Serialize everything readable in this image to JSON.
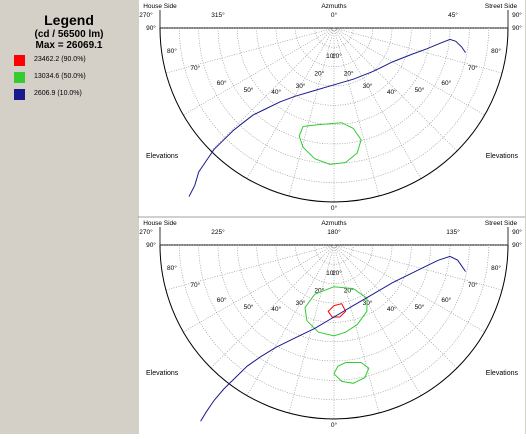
{
  "legend": {
    "title": "Legend",
    "subtitle": "(cd / 56500 lm)",
    "max": "Max = 26069.1",
    "items": [
      {
        "label": "23462.2  (90.0%)",
        "color": "#ff0000"
      },
      {
        "label": "13034.6  (50.0%)",
        "color": "#33cc33"
      },
      {
        "label": "2606.9  (10.0%)",
        "color": "#1a1a8c"
      }
    ]
  },
  "chart_data": [
    {
      "type": "polar-contour",
      "header_left": "House Side",
      "header_center": "Azmuths",
      "header_right": "Street Side",
      "azimuth_ticks": [
        "270°",
        "315°",
        "0°",
        "45°",
        "90°"
      ],
      "elevation_left_ticks": [
        "90°",
        "80°",
        "70°",
        "60°",
        "50°",
        "40°",
        "30°",
        "20°",
        "10°"
      ],
      "elevation_right_ticks": [
        "90°",
        "80°",
        "70°",
        "60°",
        "50°",
        "40°",
        "30°",
        "20°",
        "10°"
      ],
      "bottom_tick": "0°",
      "side_label_left": "Elevations",
      "side_label_right": "Elevations",
      "contours": [
        {
          "level": "13034.6 (50.0%)",
          "color": "#33cc33",
          "points": [
            [
              -16,
              38
            ],
            [
              -8,
              39
            ],
            [
              4,
              40
            ],
            [
              10,
              37
            ],
            [
              14,
              31
            ],
            [
              12,
              24
            ],
            [
              6,
              19
            ],
            [
              -2,
              18
            ],
            [
              -10,
              21
            ],
            [
              -16,
              27
            ],
            [
              -18,
              33
            ],
            [
              -16,
              38
            ]
          ]
        },
        {
          "level": "2606.9 (10.0%)",
          "color": "#1a1a8c",
          "points": [
            [
              -75,
              1
            ],
            [
              -72,
              7
            ],
            [
              -70,
              14
            ],
            [
              -66,
              20
            ],
            [
              -62,
              26
            ],
            [
              -57,
              31
            ],
            [
              -52,
              36
            ],
            [
              -47,
              40
            ],
            [
              -42,
              44
            ],
            [
              -36,
              47
            ],
            [
              -28,
              51
            ],
            [
              -20,
              54
            ],
            [
              -10,
              57
            ],
            [
              0,
              60
            ],
            [
              10,
              63
            ],
            [
              20,
              67
            ],
            [
              30,
              72
            ],
            [
              40,
              76
            ],
            [
              48,
              79
            ],
            [
              55,
              82
            ],
            [
              60,
              84
            ],
            [
              63,
              83
            ],
            [
              66,
              80
            ],
            [
              68,
              77
            ]
          ]
        }
      ]
    },
    {
      "type": "polar-contour",
      "header_left": "House Side",
      "header_center": "Azmuths",
      "header_right": "Street Side",
      "azimuth_ticks": [
        "270°",
        "225°",
        "180°",
        "135°",
        "90°"
      ],
      "elevation_left_ticks": [
        "90°",
        "80°",
        "70°",
        "60°",
        "50°",
        "40°",
        "30°",
        "20°",
        "10°"
      ],
      "elevation_right_ticks": [
        "90°",
        "80°",
        "70°",
        "60°",
        "50°",
        "40°",
        "30°",
        "20°",
        "10°"
      ],
      "bottom_tick": "0°",
      "side_label_left": "Elevations",
      "side_label_right": "Elevations",
      "contours": [
        {
          "level": "23462.2 (90.0%)",
          "color": "#ff0000",
          "points": [
            [
              0,
              58
            ],
            [
              4,
              59
            ],
            [
              6,
              55
            ],
            [
              3,
              52
            ],
            [
              -1,
              52
            ],
            [
              -3,
              55
            ],
            [
              0,
              58
            ]
          ]
        },
        {
          "level": "13034.6 (50.0%)",
          "color": "#33cc33",
          "points": [
            [
              0,
              68
            ],
            [
              10,
              67
            ],
            [
              17,
              62
            ],
            [
              17,
              55
            ],
            [
              12,
              48
            ],
            [
              6,
              44
            ],
            [
              0,
              42
            ],
            [
              -8,
              44
            ],
            [
              -14,
              50
            ],
            [
              -15,
              57
            ],
            [
              -10,
              64
            ],
            [
              0,
              68
            ]
          ]
        },
        {
          "level": "13034.6 (50.0%)",
          "color": "#33cc33",
          "points": [
            [
              6,
              28
            ],
            [
              14,
              28
            ],
            [
              18,
              25
            ],
            [
              16,
              20
            ],
            [
              10,
              17
            ],
            [
              4,
              18
            ],
            [
              0,
              22
            ],
            [
              2,
              26
            ],
            [
              6,
              28
            ]
          ]
        },
        {
          "level": "2606.9 (10.0%)",
          "color": "#1a1a8c",
          "points": [
            [
              -69,
              -3
            ],
            [
              -66,
              2
            ],
            [
              -62,
              8
            ],
            [
              -57,
              14
            ],
            [
              -51,
              20
            ],
            [
              -45,
              26
            ],
            [
              -38,
              31
            ],
            [
              -30,
              36
            ],
            [
              -20,
              41
            ],
            [
              -10,
              46
            ],
            [
              0,
              52
            ],
            [
              10,
              58
            ],
            [
              20,
              64
            ],
            [
              30,
              70
            ],
            [
              38,
              74
            ],
            [
              46,
              78
            ],
            [
              54,
              82
            ],
            [
              60,
              84
            ],
            [
              64,
              82
            ],
            [
              66,
              79
            ],
            [
              68,
              76
            ]
          ]
        }
      ]
    }
  ]
}
